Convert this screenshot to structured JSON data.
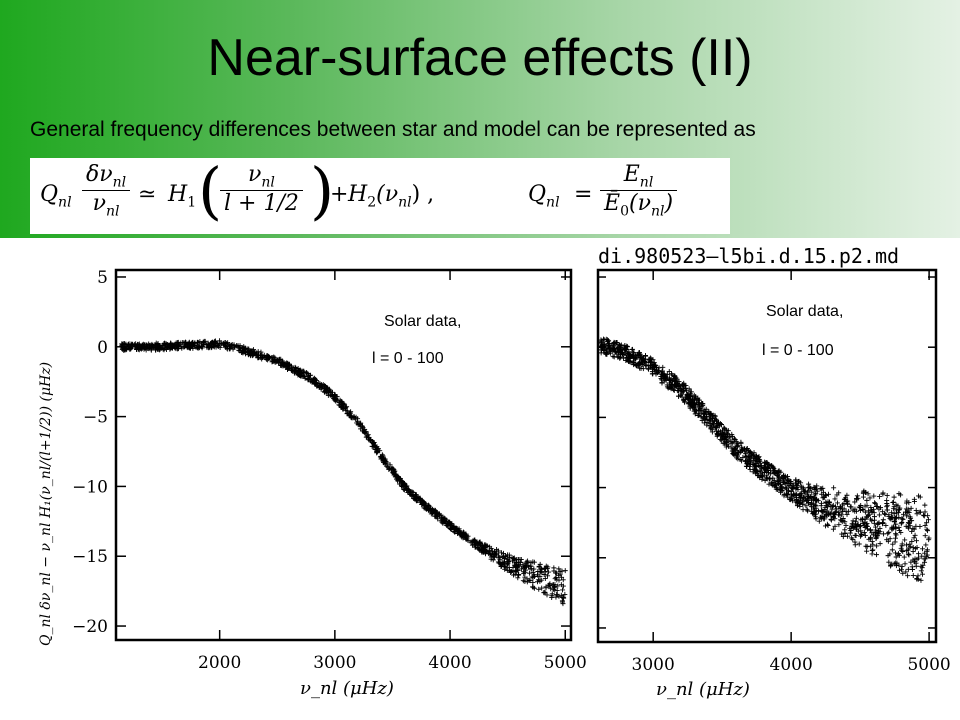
{
  "slide": {
    "title": "Near-surface effects (II)",
    "subtitle": "General frequency differences between star and model can be represented as",
    "file_label": "di.980523–l5bi.d.15.p2.md"
  },
  "equation_1": {
    "lhs_q": "Q",
    "lhs_sub": "nl",
    "num": "δν",
    "num_sub": "nl",
    "den": "ν",
    "den_sub": "nl",
    "relation": "≃",
    "h1": "H",
    "h1_sub": "1",
    "inner_num": "ν",
    "inner_num_sub": "nl",
    "inner_den": "l + 1/2",
    "plus": "+",
    "h2": "H",
    "h2_sub": "2",
    "h2_arg": "(ν",
    "h2_arg_sub": "nl",
    "h2_close": ") ,"
  },
  "equation_2": {
    "lhs_q": "Q",
    "lhs_sub": "nl",
    "equals": "=",
    "num": "E",
    "num_sub": "nl",
    "den": "Ē",
    "den_sub": "0",
    "den_arg": "(ν",
    "den_arg_sub": "nl",
    "den_close": ")"
  },
  "chart_data": [
    {
      "type": "scatter",
      "title": "",
      "xlabel": "ν_nl (μHz)",
      "ylabel": "Q_nl δν_nl − ν_nl H₁(ν_nl/(l+1/2)) (μHz)",
      "xlim": [
        1100,
        5050
      ],
      "ylim": [
        -21,
        5.5
      ],
      "xticks": [
        "2000",
        "3000",
        "4000",
        "5000"
      ],
      "yticks": [
        "5",
        "0",
        "−5",
        "−10",
        "−15",
        "−20"
      ],
      "annotation_1": "Solar data,",
      "annotation_2": "l = 0 - 100",
      "grid": false,
      "series": [
        {
          "x": [
            1150,
            1400,
            1700,
            2000,
            2200,
            2500,
            2800,
            3000,
            3200,
            3400,
            3600,
            3800,
            4000,
            4200,
            4400,
            4600,
            4800,
            5000
          ],
          "values": [
            0.0,
            0.0,
            0.1,
            0.2,
            -0.2,
            -1.0,
            -2.3,
            -3.6,
            -5.4,
            -7.8,
            -10.0,
            -11.5,
            -12.8,
            -14.0,
            -15.0,
            -15.9,
            -16.6,
            -17.3
          ]
        }
      ]
    },
    {
      "type": "scatter",
      "title": "",
      "xlabel": "ν_nl (μHz)",
      "ylabel": "",
      "xlim": [
        2600,
        5050
      ],
      "ylim": [
        -21,
        5.5
      ],
      "xticks": [
        "3000",
        "4000",
        "5000"
      ],
      "annotation_1": "Solar data,",
      "annotation_2": "l = 0 - 100",
      "grid": false,
      "series": [
        {
          "x": [
            2600,
            2800,
            3000,
            3200,
            3400,
            3600,
            3800,
            4000,
            4200,
            4400,
            4600,
            4800,
            5000
          ],
          "values": [
            0.0,
            -0.6,
            -1.7,
            -3.3,
            -5.4,
            -7.5,
            -9.2,
            -10.6,
            -11.6,
            -12.4,
            -13.1,
            -13.8,
            -14.4
          ]
        },
        {
          "x": [
            2600,
            2800,
            3000,
            3200,
            3400,
            3600,
            3800,
            4000,
            4200,
            4400,
            4600,
            4800,
            5000
          ],
          "values": [
            0.4,
            -0.2,
            -1.2,
            -2.7,
            -4.7,
            -6.8,
            -8.4,
            -9.7,
            -10.7,
            -11.4,
            -12.0,
            -12.7,
            -13.3
          ]
        }
      ]
    }
  ]
}
